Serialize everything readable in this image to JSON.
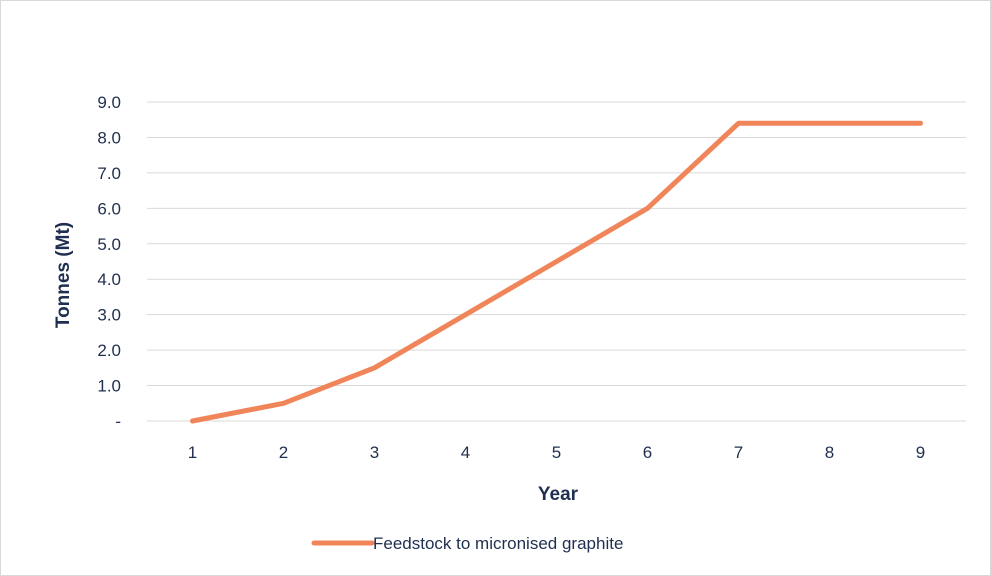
{
  "chart_data": {
    "type": "line",
    "xlabel": "Year",
    "ylabel": "Tonnes (Mt)",
    "categories": [
      "1",
      "2",
      "3",
      "4",
      "5",
      "6",
      "7",
      "8",
      "9"
    ],
    "ylim": [
      0,
      9
    ],
    "yticks": [
      {
        "value": 0,
        "label": "-"
      },
      {
        "value": 1,
        "label": "1.0"
      },
      {
        "value": 2,
        "label": "2.0"
      },
      {
        "value": 3,
        "label": "3.0"
      },
      {
        "value": 4,
        "label": "4.0"
      },
      {
        "value": 5,
        "label": "5.0"
      },
      {
        "value": 6,
        "label": "6.0"
      },
      {
        "value": 7,
        "label": "7.0"
      },
      {
        "value": 8,
        "label": "8.0"
      },
      {
        "value": 9,
        "label": "9.0"
      }
    ],
    "grid": true,
    "legend_position": "bottom",
    "series": [
      {
        "name": "Feedstock to micronised graphite",
        "color": "#f0855a",
        "values": [
          0,
          0.5,
          1.5,
          3.0,
          4.5,
          6.0,
          8.4,
          8.4,
          8.4
        ]
      }
    ]
  }
}
